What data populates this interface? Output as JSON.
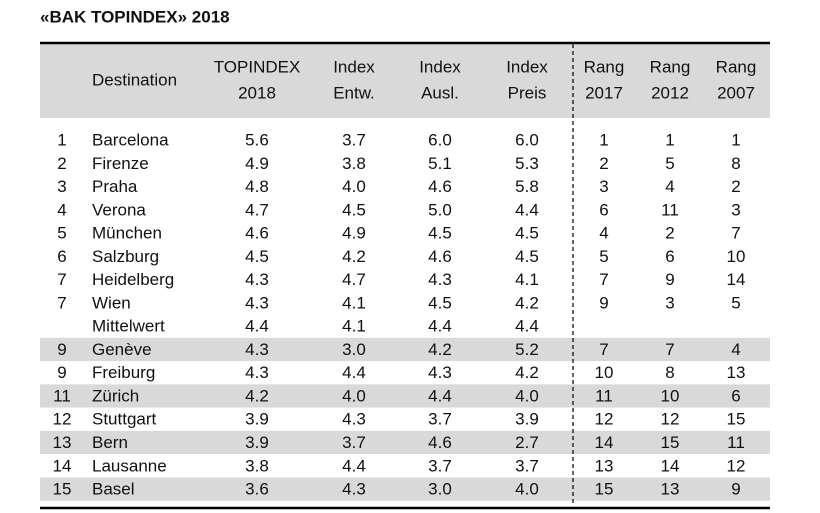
{
  "title": "«BAK TOPINDEX» 2018",
  "table": {
    "header": [
      null,
      [
        "Destination"
      ],
      [
        "TOPINDEX",
        "2018"
      ],
      [
        "Index",
        "Entw."
      ],
      [
        "Index",
        "Ausl."
      ],
      [
        "Index",
        "Preis"
      ],
      [
        "Rang",
        "2017"
      ],
      [
        "Rang",
        "2012"
      ],
      [
        "Rang",
        "2007"
      ]
    ],
    "rows": [
      [
        "1",
        "Barcelona",
        "5.6",
        "3.7",
        "6.0",
        "6.0",
        "1",
        "1",
        "1"
      ],
      [
        "2",
        "Firenze",
        "4.9",
        "3.8",
        "5.1",
        "5.3",
        "2",
        "5",
        "8"
      ],
      [
        "3",
        "Praha",
        "4.8",
        "4.0",
        "4.6",
        "5.8",
        "3",
        "4",
        "2"
      ],
      [
        "4",
        "Verona",
        "4.7",
        "4.5",
        "5.0",
        "4.4",
        "6",
        "11",
        "3"
      ],
      [
        "5",
        "München",
        "4.6",
        "4.9",
        "4.5",
        "4.5",
        "4",
        "2",
        "7"
      ],
      [
        "6",
        "Salzburg",
        "4.5",
        "4.2",
        "4.6",
        "4.5",
        "5",
        "6",
        "10"
      ],
      [
        "7",
        "Heidelberg",
        "4.3",
        "4.7",
        "4.3",
        "4.1",
        "7",
        "9",
        "14"
      ],
      [
        "7",
        "Wien",
        "4.3",
        "4.1",
        "4.5",
        "4.2",
        "9",
        "3",
        "5"
      ],
      [
        null,
        "Mittelwert",
        "4.4",
        "4.1",
        "4.4",
        "4.4",
        null,
        null,
        null
      ],
      [
        "9",
        "Genève",
        "4.3",
        "3.0",
        "4.2",
        "5.2",
        "7",
        "7",
        "4"
      ],
      [
        "9",
        "Freiburg",
        "4.3",
        "4.4",
        "4.3",
        "4.2",
        "10",
        "8",
        "13"
      ],
      [
        "11",
        "Zürich",
        "4.2",
        "4.0",
        "4.4",
        "4.0",
        "11",
        "10",
        "6"
      ],
      [
        "12",
        "Stuttgart",
        "3.9",
        "4.3",
        "3.7",
        "3.9",
        "12",
        "12",
        "15"
      ],
      [
        "13",
        "Bern",
        "3.9",
        "3.7",
        "4.6",
        "2.7",
        "14",
        "15",
        "11"
      ],
      [
        "14",
        "Lausanne",
        "3.8",
        "4.4",
        "3.7",
        "3.7",
        "13",
        "14",
        "12"
      ],
      [
        "15",
        "Basel",
        "3.6",
        "4.3",
        "3.0",
        "4.0",
        "15",
        "13",
        "9"
      ]
    ]
  }
}
